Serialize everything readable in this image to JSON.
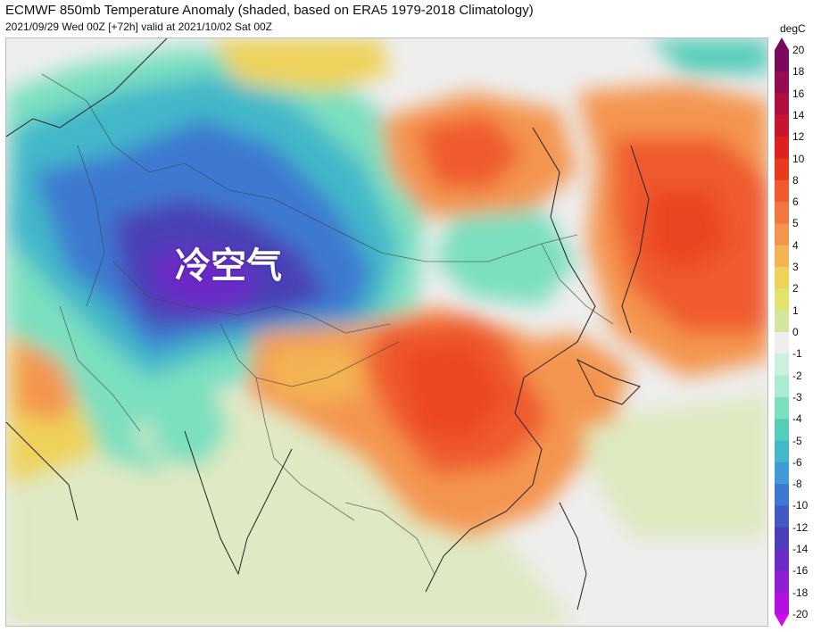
{
  "header": {
    "title": "ECMWF 850mb Temperature Anomaly (shaded, based on ERA5 1979-2018 Climatology)",
    "subtitle": "2021/09/29 Wed 00Z [+72h] valid at 2021/10/02 Sat 00Z"
  },
  "map": {
    "annotation": "冷空气",
    "region": "East Asia"
  },
  "colorbar": {
    "unit": "degC",
    "ticks": [
      "20",
      "18",
      "16",
      "14",
      "12",
      "10",
      "8",
      "6",
      "5",
      "4",
      "3",
      "2",
      "1",
      "0",
      "-1",
      "-2",
      "-3",
      "-4",
      "-5",
      "-6",
      "-8",
      "-10",
      "-12",
      "-14",
      "-16",
      "-18",
      "-20"
    ],
    "colors": [
      "#7a0a5c",
      "#950c4f",
      "#b0103f",
      "#c8152f",
      "#de2020",
      "#e83b1e",
      "#ef5a2e",
      "#f2763f",
      "#f4954f",
      "#f3b453",
      "#eed25a",
      "#e2e36e",
      "#d2e6a0",
      "#eeeeee",
      "#c9f2dc",
      "#a8ecd2",
      "#7cdfc0",
      "#55cdb9",
      "#43b8c9",
      "#3f9ad6",
      "#3d79d0",
      "#3f5ac3",
      "#4a3fb6",
      "#6a2bc6",
      "#8f1fd2",
      "#b311df",
      "#d30aec"
    ]
  }
}
